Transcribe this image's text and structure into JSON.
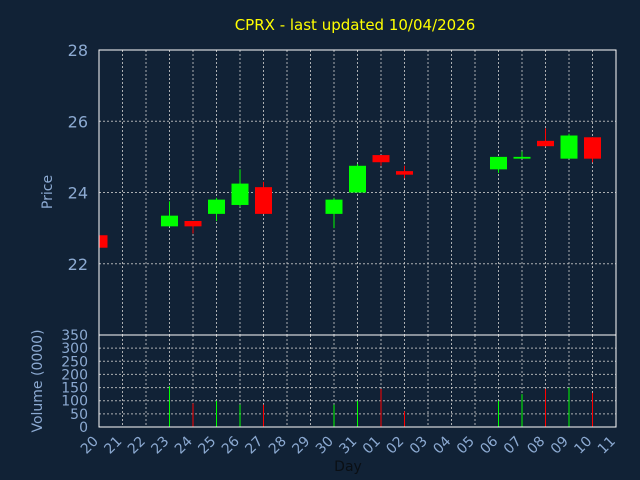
{
  "chart_data": {
    "type": "candlestick",
    "title": "CPRX - last updated 10/04/2026",
    "xlabel": "Day",
    "colors": {
      "background": "#112236",
      "up": "#00ff00",
      "down": "#ff0000",
      "text": "#8caad2",
      "title": "#ffff00",
      "grid": "#c8c8c8"
    },
    "x_ticks": [
      "20",
      "21",
      "22",
      "23",
      "24",
      "25",
      "26",
      "27",
      "28",
      "29",
      "30",
      "31",
      "01",
      "02",
      "03",
      "04",
      "05",
      "06",
      "07",
      "08",
      "09",
      "10",
      "11"
    ],
    "price": {
      "ylabel": "Price",
      "ylim": [
        20.0,
        28.0
      ],
      "yticks": [
        "22",
        "24",
        "26",
        "28"
      ],
      "grid": true
    },
    "volume": {
      "ylabel": "Volume (0000)",
      "ylim": [
        0,
        350
      ],
      "yticks": [
        "0",
        "50",
        "100",
        "150",
        "200",
        "250",
        "300",
        "350"
      ],
      "grid": true
    },
    "candles": [
      {
        "day": "20",
        "open": 22.8,
        "high": 22.8,
        "low": 22.4,
        "close": 22.45,
        "volume": 0
      },
      {
        "day": "23",
        "open": 23.05,
        "high": 23.75,
        "low": 23.05,
        "close": 23.35,
        "volume": 155
      },
      {
        "day": "24",
        "open": 23.2,
        "high": 23.2,
        "low": 22.85,
        "close": 23.05,
        "volume": 90
      },
      {
        "day": "25",
        "open": 23.4,
        "high": 23.85,
        "low": 23.2,
        "close": 23.8,
        "volume": 100
      },
      {
        "day": "26",
        "open": 23.65,
        "high": 24.65,
        "low": 23.6,
        "close": 24.25,
        "volume": 85
      },
      {
        "day": "27",
        "open": 24.15,
        "high": 24.3,
        "low": 23.4,
        "close": 23.4,
        "volume": 85
      },
      {
        "day": "30",
        "open": 23.4,
        "high": 23.85,
        "low": 23.0,
        "close": 23.8,
        "volume": 85
      },
      {
        "day": "31",
        "open": 24.0,
        "high": 24.8,
        "low": 24.0,
        "close": 24.75,
        "volume": 100
      },
      {
        "day": "01",
        "open": 25.05,
        "high": 25.05,
        "low": 24.75,
        "close": 24.85,
        "volume": 145
      },
      {
        "day": "02",
        "open": 24.6,
        "high": 24.75,
        "low": 24.4,
        "close": 24.5,
        "volume": 60
      },
      {
        "day": "06",
        "open": 24.65,
        "high": 25.0,
        "low": 24.55,
        "close": 25.0,
        "volume": 100
      },
      {
        "day": "07",
        "open": 24.95,
        "high": 25.15,
        "low": 24.95,
        "close": 25.0,
        "volume": 125
      },
      {
        "day": "08",
        "open": 25.45,
        "high": 25.8,
        "low": 25.3,
        "close": 25.3,
        "volume": 145
      },
      {
        "day": "09",
        "open": 24.95,
        "high": 25.65,
        "low": 24.95,
        "close": 25.6,
        "volume": 150
      },
      {
        "day": "10",
        "open": 25.55,
        "high": 25.55,
        "low": 24.85,
        "close": 24.95,
        "volume": 130
      }
    ]
  }
}
